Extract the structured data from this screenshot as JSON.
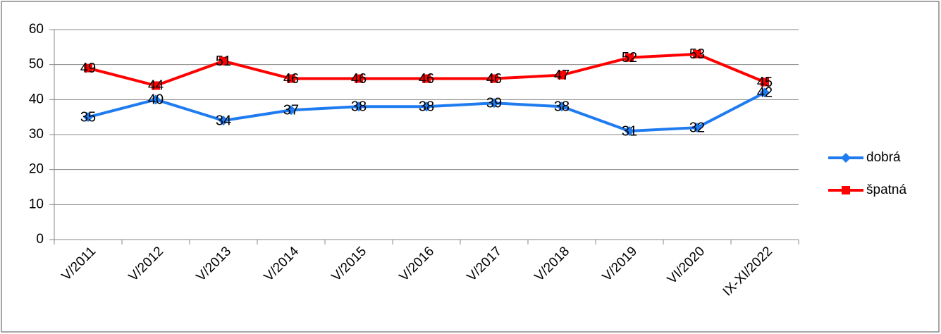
{
  "chart_data": {
    "type": "line",
    "categories": [
      "V/2011",
      "V/2012",
      "V/2013",
      "V/2014",
      "V/2015",
      "V/2016",
      "V/2017",
      "V/2018",
      "V/2019",
      "VI/2020",
      "IX-XI/2022"
    ],
    "series": [
      {
        "name": "dobrá",
        "color": "#1f7bf0",
        "marker": "diamond",
        "values": [
          35,
          40,
          34,
          37,
          38,
          38,
          39,
          38,
          31,
          32,
          42
        ]
      },
      {
        "name": "špatná",
        "color": "#ff0000",
        "marker": "square",
        "values": [
          49,
          44,
          51,
          46,
          46,
          46,
          46,
          47,
          52,
          53,
          45
        ]
      }
    ],
    "ylim": [
      0,
      60
    ],
    "yticks": [
      0,
      10,
      20,
      30,
      40,
      50,
      60
    ],
    "grid": true,
    "legend": "right"
  }
}
